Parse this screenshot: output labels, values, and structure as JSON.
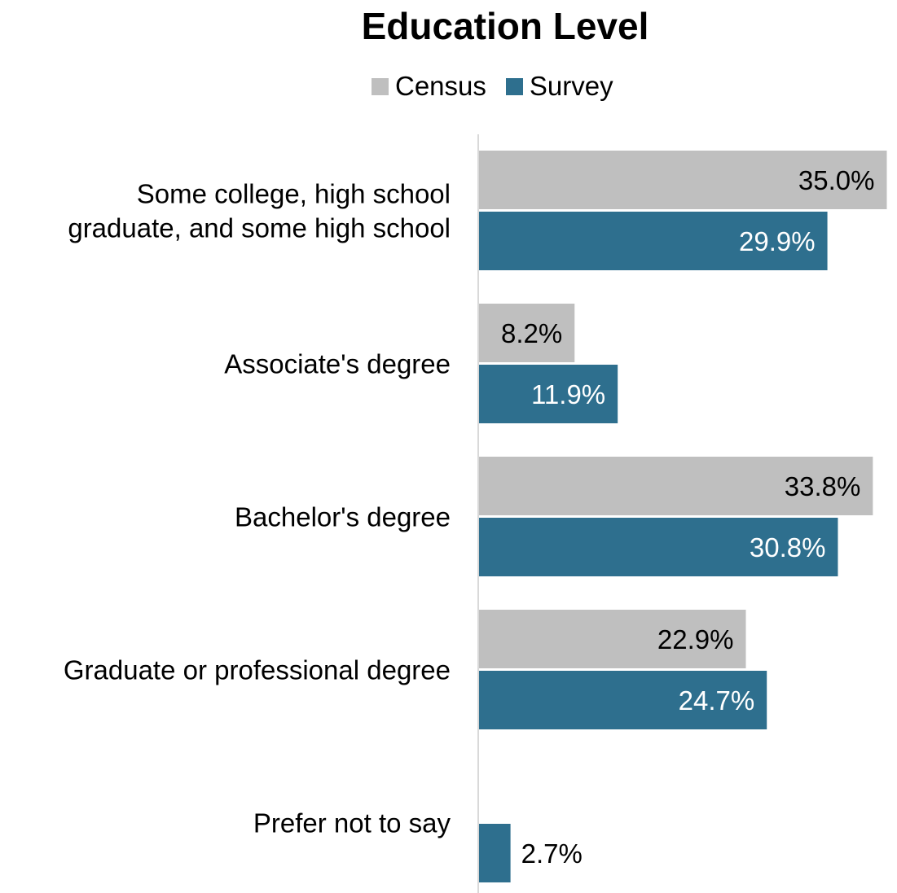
{
  "chart_data": {
    "type": "bar",
    "orientation": "horizontal",
    "title": "Education Level",
    "categories": [
      "Some college, high school graduate, and some high school",
      "Associate's degree",
      "Bachelor's degree",
      "Graduate or professional degree",
      "Prefer not to say"
    ],
    "category_lines": [
      [
        "Some college, high school",
        "graduate, and some high school"
      ],
      [
        "Associate's degree"
      ],
      [
        "Bachelor's degree"
      ],
      [
        "Graduate or professional degree"
      ],
      [
        "Prefer not to say"
      ]
    ],
    "series": [
      {
        "name": "Census",
        "color": "#bfbfbf",
        "label_color": "#000000",
        "values": [
          35.0,
          8.2,
          33.8,
          22.9,
          null
        ],
        "labels": [
          "35.0%",
          "8.2%",
          "33.8%",
          "22.9%",
          ""
        ]
      },
      {
        "name": "Survey",
        "color": "#2e6f8e",
        "label_color": "#ffffff",
        "values": [
          29.9,
          11.9,
          30.8,
          24.7,
          2.7
        ],
        "labels": [
          "29.9%",
          "11.9%",
          "30.8%",
          "24.7%",
          "2.7%"
        ]
      }
    ],
    "xlim": [
      0,
      35.0
    ],
    "legend_position": "top",
    "grid": false,
    "xlabel": "",
    "ylabel": ""
  }
}
